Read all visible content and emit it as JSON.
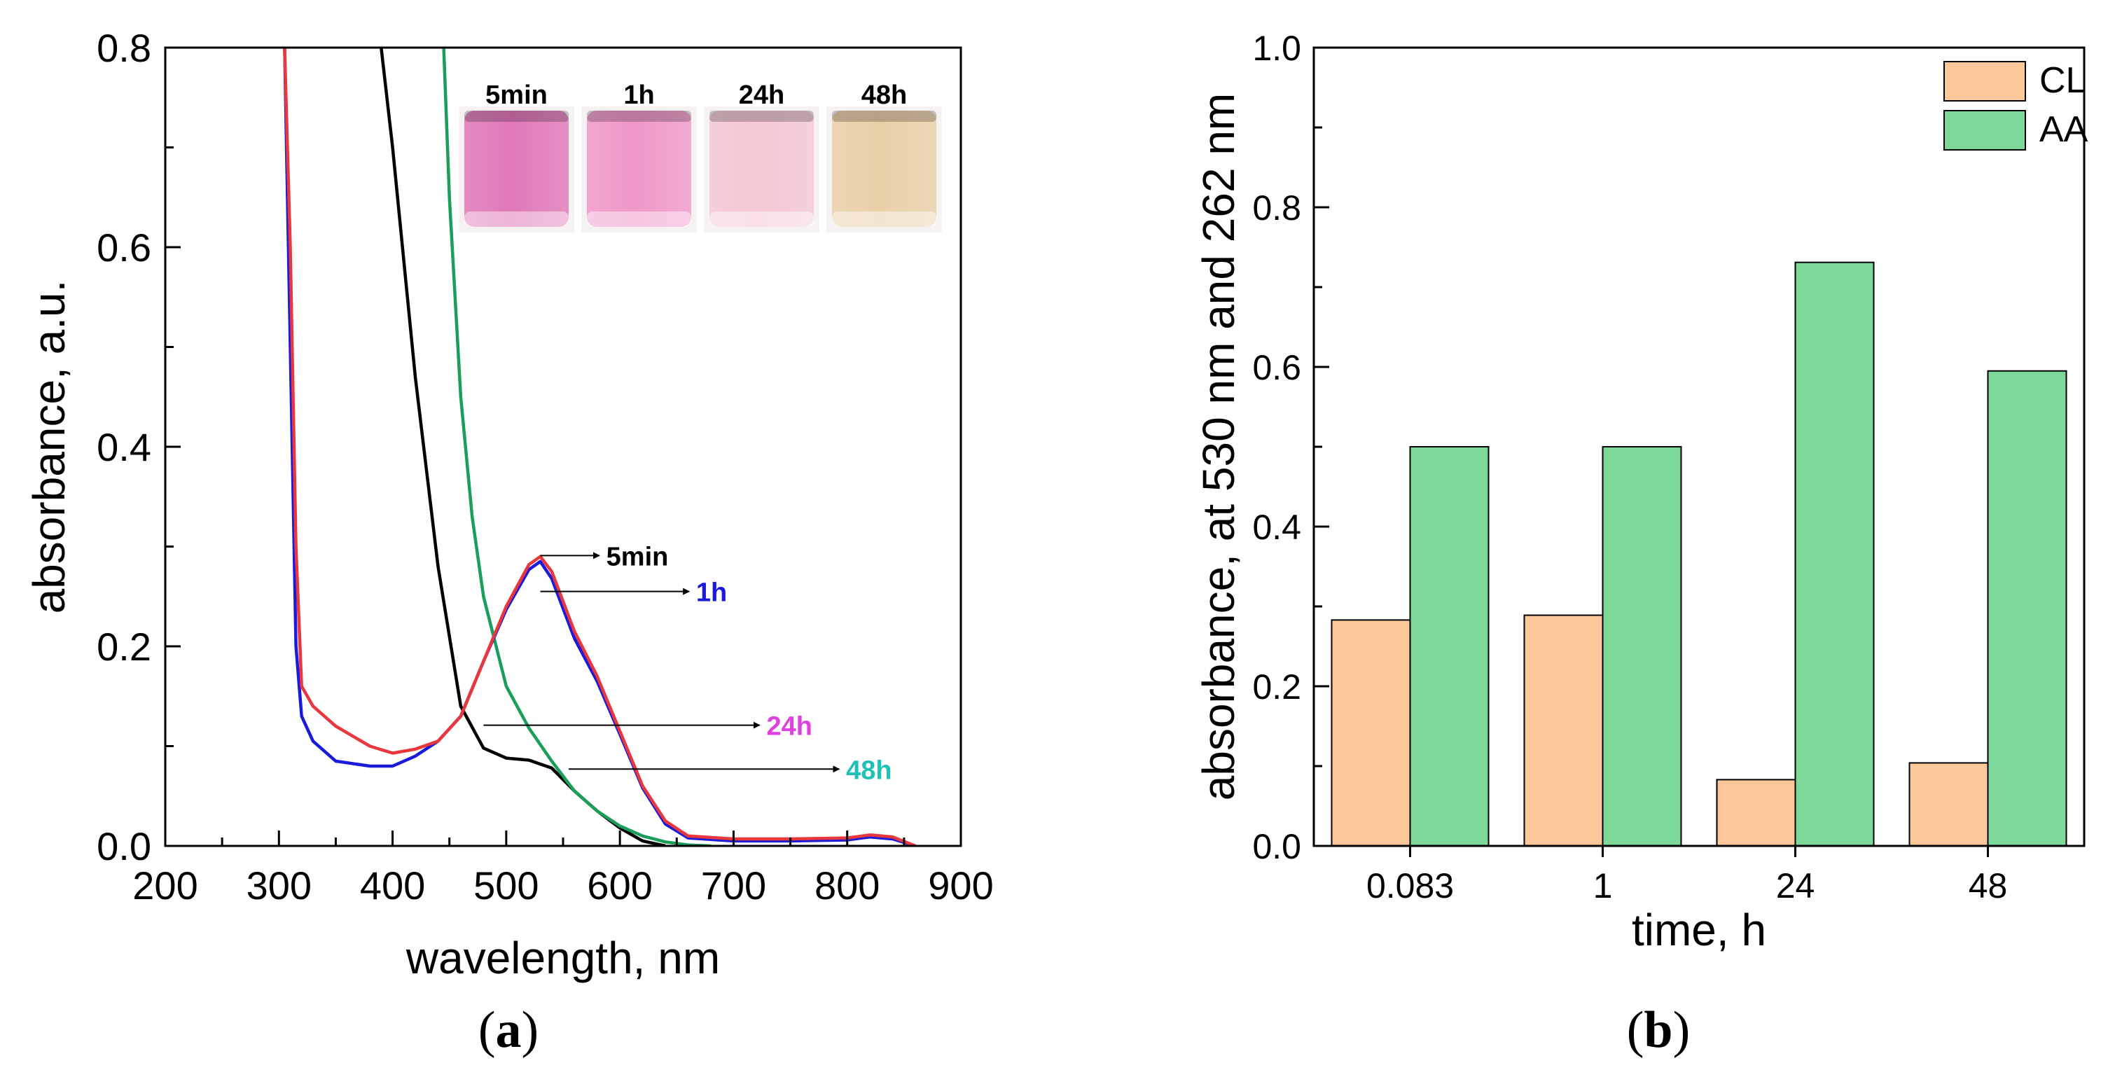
{
  "chart_data": [
    {
      "type": "line",
      "panel_label": "a",
      "xlabel": "wavelength, nm",
      "ylabel": "absorbance, a.u.",
      "xlim": [
        200,
        900
      ],
      "ylim": [
        0,
        0.8
      ],
      "x_ticks": [
        "200",
        "300",
        "400",
        "500",
        "600",
        "700",
        "800",
        "900"
      ],
      "y_ticks": [
        "0.0",
        "0.2",
        "0.4",
        "0.6",
        "0.8"
      ],
      "series": [
        {
          "name": "5min",
          "color": "#e8383d",
          "x": [
            305,
            310,
            315,
            320,
            330,
            350,
            380,
            400,
            420,
            440,
            460,
            480,
            500,
            520,
            530,
            540,
            560,
            580,
            600,
            620,
            640,
            660,
            700,
            750,
            800,
            820,
            840,
            860
          ],
          "y": [
            0.8,
            0.6,
            0.3,
            0.16,
            0.14,
            0.12,
            0.1,
            0.093,
            0.097,
            0.105,
            0.13,
            0.185,
            0.24,
            0.282,
            0.29,
            0.275,
            0.215,
            0.17,
            0.115,
            0.06,
            0.025,
            0.01,
            0.007,
            0.007,
            0.008,
            0.011,
            0.009,
            0.0
          ]
        },
        {
          "name": "1h",
          "color": "#1a1adb",
          "x": [
            305,
            310,
            315,
            320,
            330,
            350,
            380,
            400,
            420,
            440,
            460,
            480,
            500,
            520,
            530,
            540,
            560,
            580,
            600,
            620,
            640,
            660,
            700,
            750,
            800,
            820,
            840,
            860
          ],
          "y": [
            0.8,
            0.5,
            0.2,
            0.13,
            0.105,
            0.085,
            0.08,
            0.08,
            0.09,
            0.105,
            0.13,
            0.185,
            0.237,
            0.277,
            0.285,
            0.268,
            0.208,
            0.165,
            0.112,
            0.058,
            0.022,
            0.008,
            0.005,
            0.005,
            0.006,
            0.009,
            0.007,
            0.0
          ]
        },
        {
          "name": "24h",
          "color": "#000000",
          "x": [
            390,
            400,
            420,
            440,
            460,
            480,
            500,
            520,
            540,
            560,
            580,
            600,
            620,
            640
          ],
          "y": [
            0.8,
            0.7,
            0.47,
            0.28,
            0.14,
            0.098,
            0.088,
            0.086,
            0.078,
            0.055,
            0.035,
            0.018,
            0.005,
            0.0
          ]
        },
        {
          "name": "48h",
          "color": "#1a9e5a",
          "x": [
            445,
            450,
            460,
            470,
            480,
            500,
            520,
            540,
            560,
            580,
            600,
            620,
            640,
            660,
            680
          ],
          "y": [
            0.8,
            0.65,
            0.45,
            0.33,
            0.25,
            0.16,
            0.118,
            0.085,
            0.055,
            0.035,
            0.02,
            0.01,
            0.004,
            0.001,
            0.0
          ]
        }
      ],
      "annotations": [
        {
          "text": "5min",
          "color": "#000000"
        },
        {
          "text": "1h",
          "color": "#1a1adb"
        },
        {
          "text": "24h",
          "color": "#e040e0"
        },
        {
          "text": "48h",
          "color": "#20c0b8"
        }
      ],
      "inset": {
        "description": "photographs of sample vials",
        "labels": [
          "5min",
          "1h",
          "24h",
          "48h"
        ],
        "colors": [
          "#e078b8",
          "#f098c8",
          "#f4c8d4",
          "#ead0a8"
        ]
      }
    },
    {
      "type": "bar",
      "panel_label": "b",
      "xlabel": "time, h",
      "ylabel": "absorbance, at 530 nm and 262 nm",
      "categories": [
        "0.083",
        "1",
        "24",
        "48"
      ],
      "ylim": [
        0,
        1.0
      ],
      "y_ticks": [
        "0.0",
        "0.2",
        "0.4",
        "0.6",
        "0.8",
        "1.0"
      ],
      "legend_position": "top-right",
      "series": [
        {
          "name": "CL",
          "color": "#fcc89a",
          "values": [
            0.283,
            0.289,
            0.083,
            0.104
          ]
        },
        {
          "name": "AA",
          "color": "#7dd89a",
          "values": [
            0.5,
            0.5,
            0.731,
            0.595
          ]
        }
      ]
    }
  ]
}
